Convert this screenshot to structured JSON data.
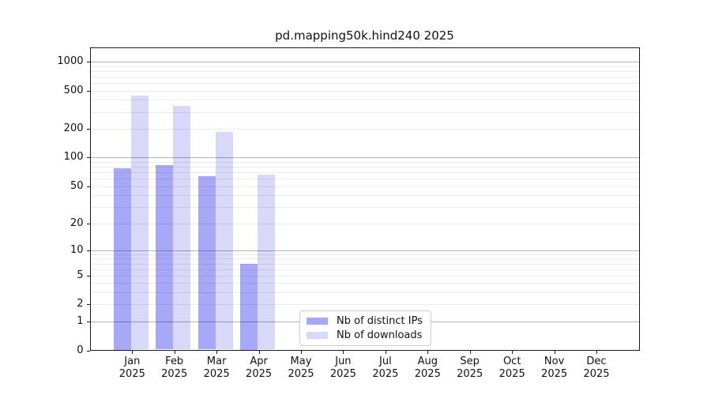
{
  "chart_data": {
    "type": "bar",
    "title": "pd.mapping50k.hind240 2025",
    "categories": [
      "Jan",
      "Feb",
      "Mar",
      "Apr",
      "May",
      "Jun",
      "Jul",
      "Aug",
      "Sep",
      "Oct",
      "Nov",
      "Dec"
    ],
    "year_label": "2025",
    "series": [
      {
        "name": "Nb of distinct IPs",
        "color": "#a8a8f8",
        "values": [
          77,
          83,
          64,
          7,
          0,
          0,
          0,
          0,
          0,
          0,
          0,
          0
        ]
      },
      {
        "name": "Nb of downloads",
        "color": "#d8d8f8",
        "values": [
          445,
          345,
          184,
          66,
          0,
          0,
          0,
          0,
          0,
          0,
          0,
          0
        ]
      }
    ],
    "yscale": "log10(1+x)",
    "yticks": [
      0,
      1,
      2,
      5,
      10,
      20,
      50,
      100,
      200,
      500,
      1000
    ],
    "ylim": [
      0,
      1400
    ],
    "grid": {
      "enabled": true,
      "major_color": "rgba(0,0,0,0.30)",
      "minor_color": "rgba(0,0,0,0.08)"
    },
    "legend_position": "lower center",
    "axis_color": "#1a1a1a",
    "background_color": "#ffffff"
  }
}
